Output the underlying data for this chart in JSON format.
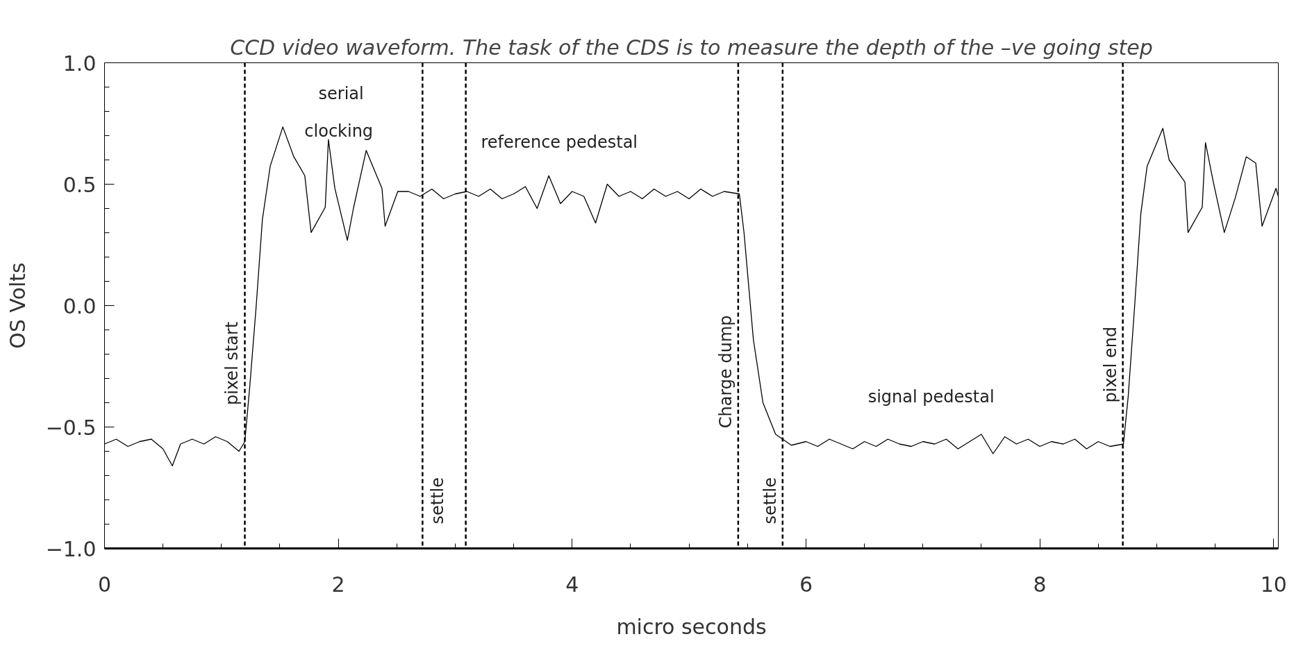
{
  "chart_data": {
    "type": "line",
    "title": "CCD video waveform. The task of the CDS is to measure the depth of the –ve going step",
    "xlabel": "micro seconds",
    "ylabel": "OS Volts",
    "xlim": [
      0,
      10.04
    ],
    "ylim": [
      -1.0,
      1.0
    ],
    "xticks": [
      0,
      2,
      4,
      6,
      8,
      10
    ],
    "yticks": [
      {
        "value": -1.0,
        "label": "−1.0"
      },
      {
        "value": -0.5,
        "label": "−0.5"
      },
      {
        "value": 0.0,
        "label": "0.0"
      },
      {
        "value": 0.5,
        "label": "0.5"
      },
      {
        "value": 1.0,
        "label": "1.0"
      }
    ],
    "grid": false,
    "marker": "none",
    "line_style": "solid",
    "series": [
      {
        "color": "#000000",
        "x": [
          0,
          0.1,
          0.2,
          0.3,
          0.4,
          0.5,
          0.58,
          0.65,
          0.75,
          0.85,
          0.95,
          1.05,
          1.15,
          1.2,
          1.242,
          1.296,
          1.35,
          1.417,
          1.525,
          1.619,
          1.713,
          1.767,
          1.888,
          1.915,
          1.97,
          2.077,
          2.131,
          2.238,
          2.373,
          2.4,
          2.508,
          2.6,
          2.7,
          2.8,
          2.9,
          3.0,
          3.1,
          3.2,
          3.3,
          3.4,
          3.5,
          3.6,
          3.7,
          3.8,
          3.9,
          4.0,
          4.1,
          4.2,
          4.3,
          4.4,
          4.5,
          4.6,
          4.7,
          4.8,
          4.9,
          5.0,
          5.1,
          5.2,
          5.3,
          5.43,
          5.47,
          5.55,
          5.632,
          5.74,
          5.875,
          6.0,
          6.1,
          6.2,
          6.3,
          6.4,
          6.5,
          6.6,
          6.7,
          6.8,
          6.9,
          7.0,
          7.1,
          7.2,
          7.3,
          7.4,
          7.5,
          7.6,
          7.7,
          7.8,
          7.9,
          8.0,
          8.1,
          8.2,
          8.3,
          8.4,
          8.5,
          8.6,
          8.715,
          8.756,
          8.81,
          8.864,
          8.918,
          9.052,
          9.106,
          9.241,
          9.268,
          9.389,
          9.417,
          9.484,
          9.578,
          9.672,
          9.766,
          9.847,
          9.901,
          10.02,
          10.04
        ],
        "values": [
          -0.57,
          -0.55,
          -0.58,
          -0.56,
          -0.55,
          -0.59,
          -0.66,
          -0.57,
          -0.55,
          -0.57,
          -0.54,
          -0.56,
          -0.6,
          -0.56,
          -0.335,
          -0.01,
          0.353,
          0.574,
          0.736,
          0.613,
          0.535,
          0.301,
          0.405,
          0.684,
          0.483,
          0.269,
          0.405,
          0.639,
          0.483,
          0.327,
          0.47,
          0.47,
          0.45,
          0.48,
          0.44,
          0.46,
          0.47,
          0.45,
          0.48,
          0.44,
          0.46,
          0.49,
          0.4,
          0.535,
          0.42,
          0.47,
          0.45,
          0.34,
          0.5,
          0.45,
          0.47,
          0.44,
          0.48,
          0.45,
          0.47,
          0.44,
          0.48,
          0.45,
          0.47,
          0.46,
          0.3,
          -0.14,
          -0.4,
          -0.53,
          -0.575,
          -0.56,
          -0.58,
          -0.55,
          -0.57,
          -0.59,
          -0.56,
          -0.58,
          -0.55,
          -0.57,
          -0.58,
          -0.56,
          -0.57,
          -0.55,
          -0.59,
          -0.56,
          -0.53,
          -0.61,
          -0.54,
          -0.57,
          -0.55,
          -0.58,
          -0.56,
          -0.57,
          -0.55,
          -0.59,
          -0.56,
          -0.58,
          -0.57,
          -0.374,
          -0.01,
          0.379,
          0.574,
          0.73,
          0.6,
          0.509,
          0.301,
          0.405,
          0.671,
          0.509,
          0.301,
          0.444,
          0.613,
          0.587,
          0.327,
          0.483,
          0.45
        ]
      }
    ],
    "ref_lines": [
      {
        "axis": "x",
        "value": 1.2,
        "label": "pixel start",
        "line_style": "dashed"
      },
      {
        "axis": "x",
        "value": 2.72,
        "label": "settle",
        "line_style": "dashed"
      },
      {
        "axis": "x",
        "value": 3.09,
        "line_style": "dashed"
      },
      {
        "axis": "x",
        "value": 5.42,
        "label": "Charge dump",
        "line_style": "dashed"
      },
      {
        "axis": "x",
        "value": 5.8,
        "label": "settle",
        "line_style": "dashed"
      },
      {
        "axis": "x",
        "value": 8.71,
        "label": "pixel end",
        "line_style": "dashed"
      }
    ],
    "annotations": [
      "serial",
      "clocking",
      "reference pedestal",
      "signal pedestal"
    ]
  }
}
